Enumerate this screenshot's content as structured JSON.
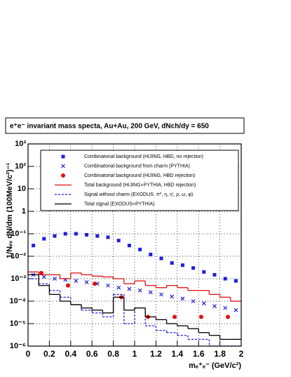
{
  "chart_data": {
    "type": "histogram",
    "title": "e⁺e⁻  invariant mass specta, Au+Au, 200 GeV, dNch/dy = 650",
    "x_label": "mₑ⁺ₑ⁻ (GeV/c²)",
    "y_label": "1/Nₑᵥ dN/dm (100MeV/c²)⁻¹",
    "log_y": true,
    "grid": true,
    "legend": "top",
    "xlim": [
      0,
      2
    ],
    "ylim": [
      1e-06,
      1000
    ],
    "xticks": [
      0,
      0.2,
      0.4,
      0.6,
      0.8,
      1,
      1.2,
      1.4,
      1.6,
      1.8,
      2
    ],
    "yticks": [
      {
        "value": 1e-06,
        "label": "10⁻⁶"
      },
      {
        "value": 1e-05,
        "label": "10⁻⁵"
      },
      {
        "value": 0.0001,
        "label": "10⁻⁴"
      },
      {
        "value": 0.001,
        "label": "10⁻³"
      },
      {
        "value": 0.01,
        "label": "10⁻²"
      },
      {
        "value": 0.1,
        "label": "10⁻¹"
      },
      {
        "value": 1,
        "label": "1"
      },
      {
        "value": 10,
        "label": "10"
      },
      {
        "value": 100,
        "label": "10²"
      },
      {
        "value": 1000,
        "label": "10³"
      }
    ],
    "bins": [
      0,
      0.1,
      0.2,
      0.3,
      0.4,
      0.5,
      0.6,
      0.7,
      0.8,
      0.9,
      1,
      1.1,
      1.2,
      1.3,
      1.4,
      1.5,
      1.6,
      1.7,
      1.8,
      1.9,
      2
    ],
    "series": [
      {
        "name": "Combinatorial background (HIJING, HBD, no rejection)",
        "color": "#1f1fe0",
        "marker": "square",
        "x": [
          0.05,
          0.15,
          0.25,
          0.35,
          0.45,
          0.55,
          0.65,
          0.75,
          0.85,
          0.95,
          1.05,
          1.15,
          1.25,
          1.35,
          1.45,
          1.55,
          1.65,
          1.75,
          1.85,
          1.95
        ],
        "values": [
          0.03,
          0.06,
          0.08,
          0.1,
          0.1,
          0.09,
          0.08,
          0.07,
          0.05,
          0.03,
          0.02,
          0.012,
          0.008,
          0.005,
          0.004,
          0.003,
          0.002,
          0.0015,
          0.001,
          0.0008
        ]
      },
      {
        "name": "Combinatorial background from charm (PYTHIA)",
        "color": "#1f1fe0",
        "marker": "cross",
        "x": [
          0.05,
          0.15,
          0.25,
          0.35,
          0.45,
          0.55,
          0.65,
          0.75,
          0.85,
          0.95,
          1.05,
          1.15,
          1.25,
          1.35,
          1.45,
          1.55,
          1.65,
          1.75,
          1.85,
          1.95
        ],
        "values": [
          0.0015,
          0.0012,
          0.001,
          0.0009,
          0.0008,
          0.0007,
          0.0006,
          0.0005,
          0.0004,
          0.00035,
          0.0003,
          0.00025,
          0.0002,
          0.00016,
          0.00013,
          0.0001,
          8e-05,
          6e-05,
          5e-05,
          4e-05
        ]
      },
      {
        "name": "Combinatorial background (HIJING, HBD rejection)",
        "color": "#e01010",
        "marker": "circle",
        "x": [
          0.125,
          0.375,
          0.625,
          0.875,
          1.125,
          1.375,
          1.625,
          1.875
        ],
        "values": [
          0.0018,
          0.0005,
          0.0006,
          0.00015,
          2e-05,
          2e-05,
          2e-05,
          2e-05
        ]
      },
      {
        "name": "Total background (HIJING+PYTHIA, HBD rejection)",
        "color": "#e01010",
        "marker": "step",
        "dash": false,
        "values": [
          0.002,
          0.0015,
          0.0015,
          0.001,
          0.0018,
          0.0015,
          0.0013,
          0.0012,
          0.001,
          0.0006,
          0.0008,
          0.0005,
          0.0004,
          0.0005,
          0.0004,
          0.0003,
          0.0003,
          0.0002,
          0.00015,
          0.0001
        ]
      },
      {
        "name": "Signal without charm (EXODUS: π⁰, η, η', ρ, ω, φ)",
        "color": "#1f1fe0",
        "marker": "step",
        "dash": true,
        "values": [
          0.001,
          0.0006,
          0.0003,
          0.00015,
          7e-05,
          4e-05,
          3e-05,
          2e-05,
          0.0002,
          1e-05,
          5e-05,
          8e-06,
          5e-06,
          4e-06,
          3e-06,
          2e-06,
          2e-06,
          1e-06,
          1e-06,
          1e-06
        ]
      },
      {
        "name": "Total signal (EXODUS+PYTHIA)",
        "color": "#000000",
        "marker": "step",
        "dash": false,
        "values": [
          0.0015,
          0.0005,
          0.0002,
          0.0001,
          7e-05,
          5e-05,
          4e-05,
          3e-05,
          0.00015,
          4e-05,
          5e-05,
          2e-05,
          1.5e-05,
          1e-05,
          8e-06,
          6e-06,
          4e-06,
          3e-06,
          2e-06,
          2e-06
        ]
      }
    ]
  }
}
